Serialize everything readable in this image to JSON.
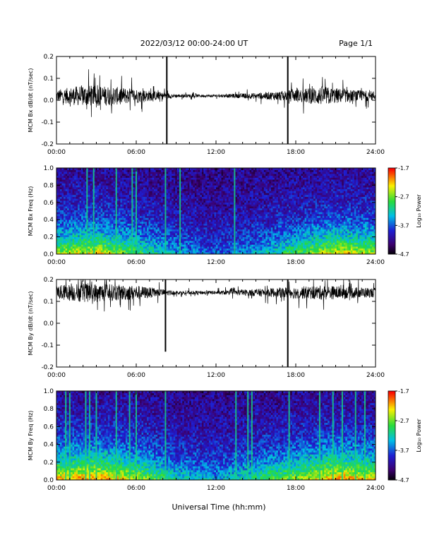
{
  "header": {
    "title": "2022/03/12  00:00-24:00 UT",
    "page": "Page 1/1"
  },
  "footer": {
    "xlabel": "Universal Time (hh:mm)"
  },
  "chart_data": [
    {
      "type": "line",
      "ylabel": "MCM Bx dB/dt (nT/sec)",
      "xlim": [
        0,
        24
      ],
      "ylim": [
        -0.2,
        0.2
      ],
      "xticks": [
        "00:00",
        "06:00",
        "12:00",
        "18:00",
        "24:00"
      ],
      "yticks": [
        "-0.2",
        "-0.1",
        "0.0",
        "0.1",
        "0.2"
      ],
      "baseline": 0.02,
      "envelope": {
        "hours": [
          0,
          2,
          4,
          6,
          8,
          9,
          12,
          15,
          18,
          20,
          22,
          24
        ],
        "amplitude": [
          0.05,
          0.09,
          0.08,
          0.06,
          0.03,
          0.015,
          0.01,
          0.025,
          0.05,
          0.08,
          0.05,
          0.04
        ]
      },
      "spikes": [
        {
          "hour": 8.3,
          "low": -0.2,
          "high": 0.2
        },
        {
          "hour": 17.4,
          "low": -0.2,
          "high": 0.2
        }
      ]
    },
    {
      "type": "heatmap",
      "ylabel": "MCM Bx Freq (Hz)",
      "xlim": [
        0,
        24
      ],
      "ylim": [
        0,
        1.0
      ],
      "xticks": [
        "00:00",
        "06:00",
        "12:00",
        "18:00",
        "24:00"
      ],
      "yticks": [
        "0.0",
        "0.2",
        "0.4",
        "0.6",
        "0.8",
        "1.0"
      ],
      "colorbar": {
        "label": "Log₁₀ Power",
        "min": -4.7,
        "max": -1.7,
        "ticks": [
          "-1.7",
          "-2.7",
          "-3.7",
          "-4.7"
        ]
      },
      "bright_lines_hours": [
        2.3,
        2.8,
        4.5,
        5.7,
        6.0,
        8.2,
        9.3,
        13.4
      ],
      "activity_hours": [
        0,
        3,
        6,
        9,
        12,
        15,
        18,
        21,
        24
      ],
      "activity_level": [
        0.6,
        0.7,
        0.5,
        0.3,
        0.2,
        0.3,
        0.5,
        0.7,
        0.6
      ]
    },
    {
      "type": "line",
      "ylabel": "MCM By dB/dt (nT/sec)",
      "xlim": [
        0,
        24
      ],
      "ylim": [
        -0.2,
        0.2
      ],
      "xticks": [
        "00:00",
        "06:00",
        "12:00",
        "18:00",
        "24:00"
      ],
      "yticks": [
        "-0.2",
        "-0.1",
        "0.0",
        "0.1",
        "0.2"
      ],
      "baseline": 0.14,
      "envelope": {
        "hours": [
          0,
          2,
          4,
          6,
          8,
          9,
          12,
          15,
          18,
          20,
          22,
          24
        ],
        "amplitude": [
          0.06,
          0.08,
          0.07,
          0.06,
          0.03,
          0.015,
          0.015,
          0.03,
          0.05,
          0.06,
          0.05,
          0.04
        ]
      },
      "spikes": [
        {
          "hour": 8.2,
          "low": -0.13,
          "high": 0.2
        },
        {
          "hour": 17.4,
          "low": -0.2,
          "high": 0.2
        }
      ]
    },
    {
      "type": "heatmap",
      "ylabel": "MCM By Freq (Hz)",
      "xlim": [
        0,
        24
      ],
      "ylim": [
        0,
        1.0
      ],
      "xticks": [
        "00:00",
        "06:00",
        "12:00",
        "18:00",
        "24:00"
      ],
      "yticks": [
        "0.0",
        "0.2",
        "0.4",
        "0.6",
        "0.8",
        "1.0"
      ],
      "colorbar": {
        "label": "Log₁₀ Power",
        "min": -4.7,
        "max": -1.7,
        "ticks": [
          "-1.7",
          "-2.7",
          "-3.7",
          "-4.7"
        ]
      },
      "bright_lines_hours": [
        0.7,
        1.0,
        2.2,
        2.5,
        3.0,
        4.5,
        5.5,
        6.0,
        8.2,
        13.5,
        14.4,
        14.7,
        17.5,
        19.8,
        20.8,
        21.5,
        22.5,
        23.2
      ],
      "activity_hours": [
        0,
        3,
        6,
        9,
        12,
        15,
        18,
        21,
        24
      ],
      "activity_level": [
        0.75,
        0.8,
        0.65,
        0.4,
        0.3,
        0.45,
        0.6,
        0.8,
        0.7
      ]
    }
  ]
}
